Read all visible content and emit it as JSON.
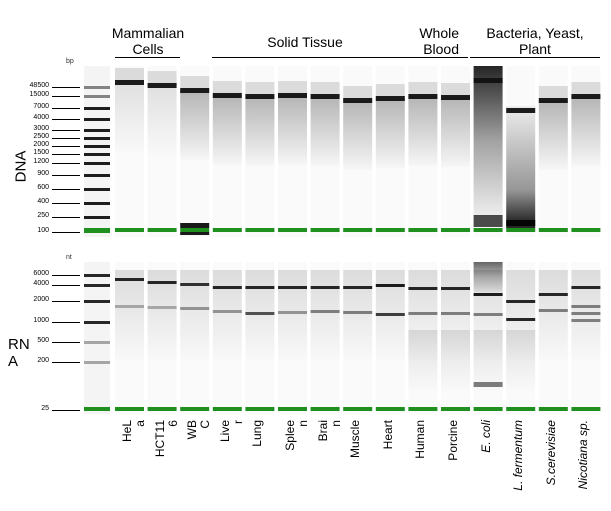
{
  "column_groups": [
    {
      "label": "Mammalian\nCells",
      "x": 0,
      "span": [
        115,
        178
      ]
    },
    {
      "label": "Solid Tissue",
      "x": 0,
      "span": [
        210,
        370
      ]
    },
    {
      "label": "Whole\nBlood",
      "x": 0,
      "span": [
        372,
        466
      ]
    },
    {
      "label": "Bacteria, Yeast,\nPlant",
      "x": 0,
      "span": [
        470,
        598
      ]
    }
  ],
  "panels": {
    "dna": {
      "label": "DNA",
      "unit": "bp",
      "ladder": [
        "48500",
        "15000",
        "7000",
        "4000",
        "3000",
        "2500",
        "2000",
        "1500",
        "1200",
        "900",
        "600",
        "400",
        "250",
        "100"
      ]
    },
    "rna": {
      "label": "RN\nA",
      "unit": "nt",
      "ladder": [
        "6000",
        "4000",
        "2000",
        "1000",
        "500",
        "200",
        "25"
      ]
    }
  },
  "lanes": [
    {
      "label": "HeL\na",
      "italic": false
    },
    {
      "label": "HCT11\n6",
      "italic": false
    },
    {
      "label": "WB\nC",
      "italic": false
    },
    {
      "label": "Live\nr",
      "italic": false
    },
    {
      "label": "Lung",
      "italic": false
    },
    {
      "label": "Splee\nn",
      "italic": false
    },
    {
      "label": "Brai\nn",
      "italic": false
    },
    {
      "label": "Muscle",
      "italic": false
    },
    {
      "label": "Heart",
      "italic": false
    },
    {
      "label": "Human",
      "italic": false
    },
    {
      "label": "Porcine",
      "italic": false
    },
    {
      "label": "E. coli",
      "italic": true
    },
    {
      "label": "L. fermentum",
      "italic": true
    },
    {
      "label": "S.cerevisiae",
      "italic": true
    },
    {
      "label": "Nicotiana sp.",
      "italic": true
    }
  ],
  "colors": {
    "marker_band": "#1f8f1f",
    "band": "#111111",
    "gel_background": "#ffffff"
  }
}
